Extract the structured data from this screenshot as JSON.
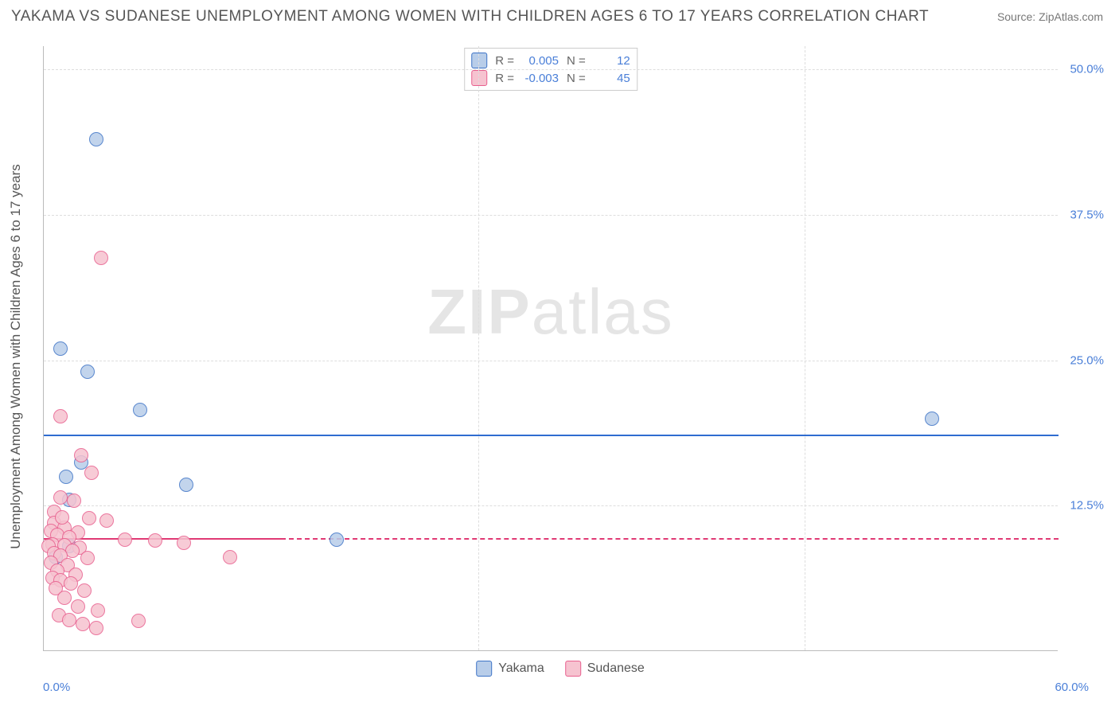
{
  "title": "YAKAMA VS SUDANESE UNEMPLOYMENT AMONG WOMEN WITH CHILDREN AGES 6 TO 17 YEARS CORRELATION CHART",
  "source": "Source: ZipAtlas.com",
  "y_axis_label": "Unemployment Among Women with Children Ages 6 to 17 years",
  "watermark_zip": "ZIP",
  "watermark_atlas": "atlas",
  "styling": {
    "background_color": "#ffffff",
    "axis_color": "#bbbbbb",
    "grid_color": "#dddddd",
    "title_color": "#555555",
    "tick_color": "#4a7fd8",
    "title_fontsize": 19,
    "label_fontsize": 17,
    "tick_fontsize": 15
  },
  "axes": {
    "x_min": 0.0,
    "x_max": 60.0,
    "y_min": 0.0,
    "y_max": 52.0,
    "x_ticks_labeled": {
      "left": "0.0%",
      "right": "60.0%"
    },
    "x_grid_positions": [
      25.7,
      45.0
    ],
    "y_ticks": [
      {
        "value": 12.5,
        "label": "12.5%"
      },
      {
        "value": 25.0,
        "label": "25.0%"
      },
      {
        "value": 37.5,
        "label": "37.5%"
      },
      {
        "value": 50.0,
        "label": "50.0%"
      }
    ]
  },
  "series": [
    {
      "name": "Yakama",
      "fill_color": "#b8cde9",
      "stroke_color": "#3d73c6",
      "point_radius": 9,
      "regression": {
        "R": "0.005",
        "N": "12",
        "y_intercept": 18.6,
        "slope": 0.005,
        "solid_x_range": [
          0.0,
          60.0
        ],
        "line_color": "#2f6cd0"
      },
      "points": [
        {
          "x": 3.1,
          "y": 44.0
        },
        {
          "x": 1.0,
          "y": 26.0
        },
        {
          "x": 2.6,
          "y": 24.0
        },
        {
          "x": 5.7,
          "y": 20.7
        },
        {
          "x": 52.5,
          "y": 20.0
        },
        {
          "x": 2.2,
          "y": 16.2
        },
        {
          "x": 1.3,
          "y": 15.0
        },
        {
          "x": 8.4,
          "y": 14.3
        },
        {
          "x": 1.5,
          "y": 13.0
        },
        {
          "x": 17.3,
          "y": 9.6
        },
        {
          "x": 1.5,
          "y": 9.0
        },
        {
          "x": 0.7,
          "y": 8.1
        }
      ]
    },
    {
      "name": "Sudanese",
      "fill_color": "#f6c3d0",
      "stroke_color": "#e85f8e",
      "point_radius": 9,
      "regression": {
        "R": "-0.003",
        "N": "45",
        "y_intercept": 9.7,
        "slope": -0.003,
        "solid_x_range": [
          0.0,
          14.0
        ],
        "line_color": "#e03a74"
      },
      "points": [
        {
          "x": 3.4,
          "y": 33.8
        },
        {
          "x": 1.0,
          "y": 20.2
        },
        {
          "x": 2.2,
          "y": 16.8
        },
        {
          "x": 2.8,
          "y": 15.3
        },
        {
          "x": 1.0,
          "y": 13.2
        },
        {
          "x": 1.8,
          "y": 12.9
        },
        {
          "x": 0.6,
          "y": 12.0
        },
        {
          "x": 2.7,
          "y": 11.4
        },
        {
          "x": 3.7,
          "y": 11.2
        },
        {
          "x": 0.6,
          "y": 11.0
        },
        {
          "x": 1.2,
          "y": 10.6
        },
        {
          "x": 0.4,
          "y": 10.3
        },
        {
          "x": 2.0,
          "y": 10.2
        },
        {
          "x": 0.8,
          "y": 10.0
        },
        {
          "x": 1.5,
          "y": 9.8
        },
        {
          "x": 4.8,
          "y": 9.6
        },
        {
          "x": 6.6,
          "y": 9.5
        },
        {
          "x": 8.3,
          "y": 9.3
        },
        {
          "x": 0.5,
          "y": 9.2
        },
        {
          "x": 1.2,
          "y": 9.1
        },
        {
          "x": 0.3,
          "y": 9.0
        },
        {
          "x": 2.1,
          "y": 8.9
        },
        {
          "x": 1.1,
          "y": 11.5
        },
        {
          "x": 1.7,
          "y": 8.6
        },
        {
          "x": 0.6,
          "y": 8.4
        },
        {
          "x": 1.0,
          "y": 8.2
        },
        {
          "x": 11.0,
          "y": 8.1
        },
        {
          "x": 2.6,
          "y": 8.0
        },
        {
          "x": 0.4,
          "y": 7.6
        },
        {
          "x": 1.4,
          "y": 7.4
        },
        {
          "x": 0.8,
          "y": 6.9
        },
        {
          "x": 1.9,
          "y": 6.6
        },
        {
          "x": 0.5,
          "y": 6.3
        },
        {
          "x": 1.0,
          "y": 6.1
        },
        {
          "x": 1.6,
          "y": 5.8
        },
        {
          "x": 0.7,
          "y": 5.4
        },
        {
          "x": 2.4,
          "y": 5.2
        },
        {
          "x": 1.2,
          "y": 4.6
        },
        {
          "x": 2.0,
          "y": 3.8
        },
        {
          "x": 3.2,
          "y": 3.5
        },
        {
          "x": 0.9,
          "y": 3.1
        },
        {
          "x": 1.5,
          "y": 2.7
        },
        {
          "x": 5.6,
          "y": 2.6
        },
        {
          "x": 2.3,
          "y": 2.3
        },
        {
          "x": 3.1,
          "y": 2.0
        }
      ]
    }
  ],
  "legend_top": {
    "r_label": "R =",
    "n_label": "N ="
  },
  "legend_bottom": [
    {
      "label": "Yakama",
      "fill": "#b8cde9",
      "stroke": "#3d73c6"
    },
    {
      "label": "Sudanese",
      "fill": "#f6c3d0",
      "stroke": "#e85f8e"
    }
  ]
}
